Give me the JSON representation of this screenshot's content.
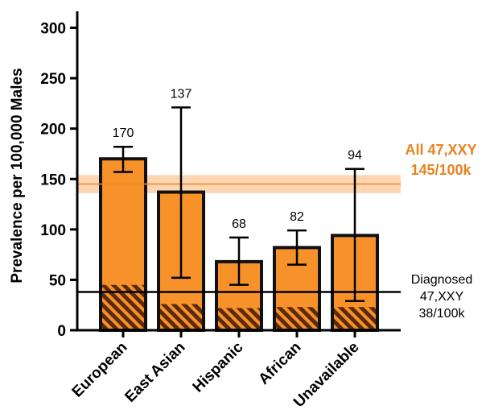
{
  "chart_data": {
    "type": "bar",
    "ylabel": "Prevalence per 100,000 Males",
    "ylim": [
      0,
      310
    ],
    "yticks": [
      0,
      50,
      100,
      150,
      200,
      250,
      300
    ],
    "categories": [
      "European",
      "East Asian",
      "Hispanic",
      "African",
      "Unavailable"
    ],
    "series": [
      {
        "values": [
          170,
          137,
          68,
          82,
          94
        ],
        "error_low": [
          157,
          52,
          45,
          65,
          29
        ],
        "error_high": [
          182,
          221,
          92,
          99,
          160
        ],
        "data_labels": [
          "170",
          "137",
          "68",
          "82",
          "94"
        ]
      },
      {
        "values": [
          45,
          26,
          22,
          23,
          23
        ]
      }
    ],
    "reference_lines": [
      {
        "value": 145,
        "band": [
          136,
          154
        ],
        "label_lines": [
          "All 47,XXY",
          "145/100k"
        ]
      },
      {
        "value": 38,
        "label_lines": [
          "Diagnosed",
          "47,XXY",
          "38/100k"
        ]
      }
    ],
    "colors": {
      "bar_fill": "#F7922B",
      "bar_edge": "#111111",
      "hatch": "#5C2A0B",
      "band": "#FBC89A",
      "band_line": "#F08A2A",
      "annotation_orange": "#E8821F"
    }
  }
}
